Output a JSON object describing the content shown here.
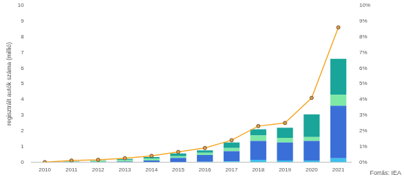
{
  "chart_data": {
    "type": "bar",
    "y_label": "regisztrált autók száma (millió)",
    "annotation": "Forrás: IEA",
    "categories": [
      "2010",
      "2011",
      "2012",
      "2013",
      "2014",
      "2015",
      "2016",
      "2017",
      "2018",
      "2019",
      "2020",
      "2021"
    ],
    "stacked": true,
    "grid": false,
    "ylim": [
      0,
      10
    ],
    "yticks": [
      0,
      1,
      2,
      3,
      4,
      5,
      6,
      7,
      8,
      9,
      10
    ],
    "y2lim": [
      0,
      10
    ],
    "y2ticks": [
      {
        "value": 0,
        "label": "0%"
      },
      {
        "value": 1,
        "label": "1%"
      },
      {
        "value": 2,
        "label": "2%"
      },
      {
        "value": 3,
        "label": "3%"
      },
      {
        "value": 4,
        "label": "4%"
      },
      {
        "value": 5,
        "label": "5%"
      },
      {
        "value": 6,
        "label": "6%"
      },
      {
        "value": 7,
        "label": "7%"
      },
      {
        "value": 8,
        "label": "8%"
      },
      {
        "value": 9,
        "label": "9%"
      },
      {
        "value": 10,
        "label": "10%"
      }
    ],
    "series": [
      {
        "color": "#3fc0ec",
        "values": [
          0,
          0.005,
          0.01,
          0.01,
          0.01,
          0.02,
          0.03,
          0.05,
          0.15,
          0.1,
          0.1,
          0.25
        ]
      },
      {
        "color": "#3a6fd8",
        "values": [
          0,
          0.005,
          0.01,
          0.03,
          0.1,
          0.25,
          0.42,
          0.65,
          1.2,
          1.15,
          1.25,
          3.35
        ]
      },
      {
        "color": "#7ee8a6",
        "values": [
          0.005,
          0.02,
          0.06,
          0.1,
          0.12,
          0.11,
          0.15,
          0.2,
          0.35,
          0.3,
          0.25,
          0.7
        ]
      },
      {
        "color": "#1aa59a",
        "values": [
          0.005,
          0.02,
          0.04,
          0.06,
          0.09,
          0.17,
          0.15,
          0.35,
          0.4,
          0.65,
          1.45,
          2.3
        ]
      },
      {
        "type": "line",
        "axis": "y2",
        "color": "#f5a623",
        "marker": "circle",
        "values": [
          0.0,
          0.1,
          0.15,
          0.25,
          0.4,
          0.65,
          0.9,
          1.4,
          2.3,
          2.5,
          4.1,
          8.6
        ]
      }
    ]
  }
}
